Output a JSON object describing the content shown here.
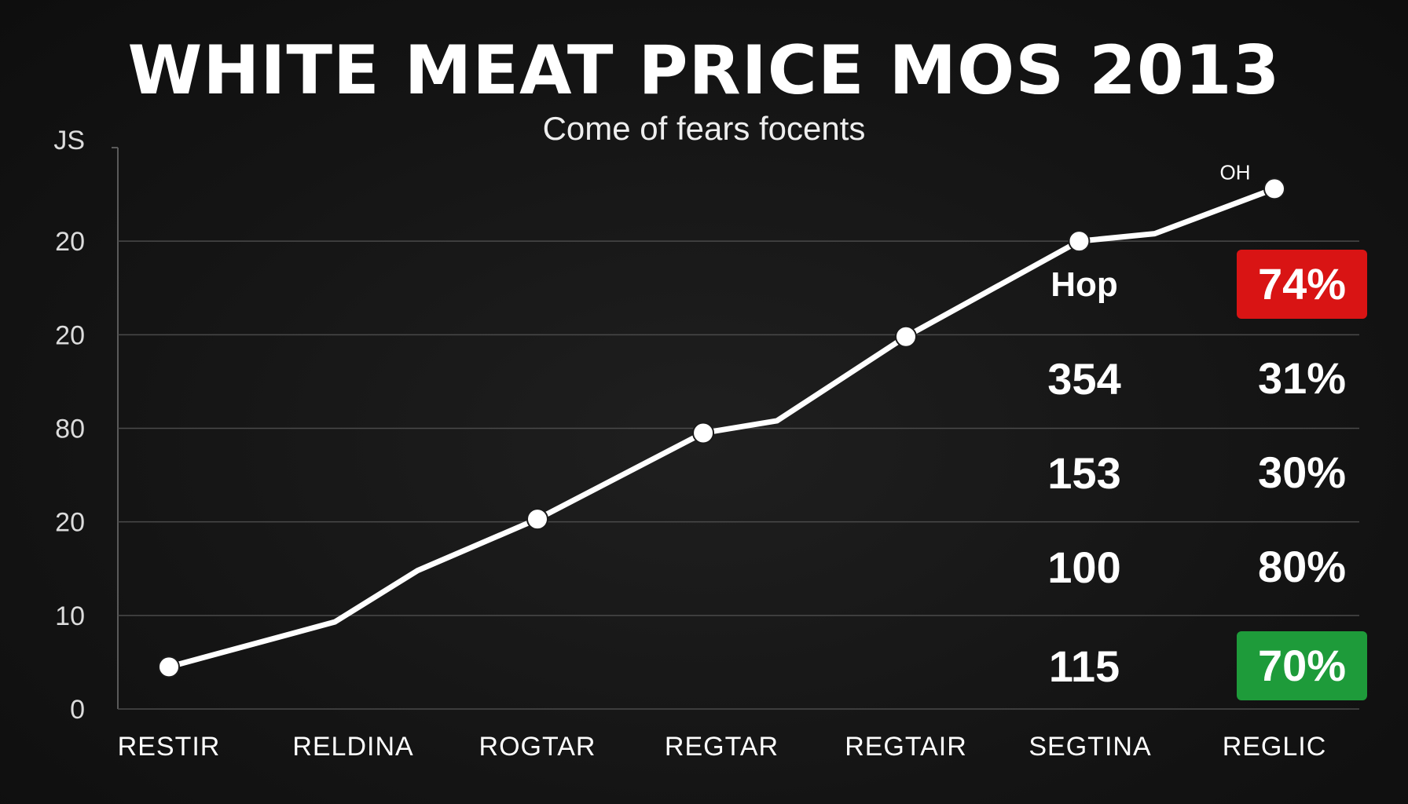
{
  "title": "WHITE MEAT PRICE MOS 2013",
  "subtitle": "Come of fears focents",
  "colors": {
    "background": "#151515",
    "line": "#ffffff",
    "grid": "#4a4a4a",
    "badge_red": "#d91414",
    "badge_green": "#1e9b3a"
  },
  "chart_data": {
    "type": "line",
    "title": "WHITE MEAT PRICE MOS 2013",
    "subtitle": "Come of fears focents",
    "y_tick_labels": [
      "0",
      "10",
      "20",
      "80",
      "20",
      "20",
      "JS"
    ],
    "categories": [
      "RESTIR",
      "RELDINA",
      "ROGTAR",
      "REGTAR",
      "REGTAIR",
      "SEGTINA",
      "REGLIC"
    ],
    "series": [
      {
        "x": [
          0,
          0.9,
          1.35,
          2.0,
          2.9,
          3.3,
          4.0,
          4.94,
          5.35,
          6.0
        ],
        "values": [
          4.5,
          9.3,
          14.8,
          20.3,
          29.5,
          30.8,
          39.8,
          50.0,
          50.8,
          55.6
        ],
        "markers": [
          true,
          false,
          false,
          true,
          true,
          false,
          true,
          true,
          false,
          true
        ]
      }
    ],
    "ylim": [
      0,
      60
    ],
    "grid": true,
    "annotations": [
      {
        "text": "OH",
        "at_point": 9
      }
    ]
  },
  "table": {
    "left_column": [
      "Hop",
      "354",
      "153",
      "100",
      "115"
    ],
    "right_column": [
      "74%",
      "31%",
      "30%",
      "80%",
      "70%"
    ],
    "right_highlight": [
      "red",
      "",
      "",
      "",
      "green"
    ]
  }
}
